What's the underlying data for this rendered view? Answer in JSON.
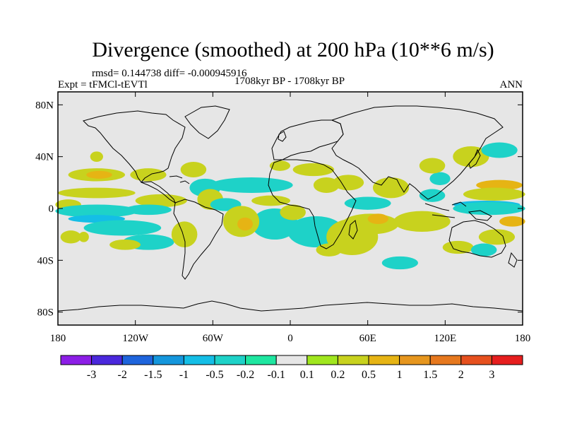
{
  "chart_data": {
    "type": "heatmap",
    "title": "Divergence (smoothed) at 200 hPa (10**6 m/s)",
    "stats_text": "rmsd= 0.144738 diff= -0.000945916",
    "left_label": "Expt = tFMCl-tEVTl",
    "center_label": "1708kyr BP - 1708kyr BP",
    "right_label": "ANN",
    "projection": "cylindrical equidistant",
    "lon_range": [
      -180,
      180
    ],
    "lat_range": [
      -90,
      90
    ],
    "x_ticks": [
      {
        "value": -180,
        "label": "180"
      },
      {
        "value": -120,
        "label": "120W"
      },
      {
        "value": -60,
        "label": "60W"
      },
      {
        "value": 0,
        "label": "0"
      },
      {
        "value": 60,
        "label": "60E"
      },
      {
        "value": 120,
        "label": "120E"
      },
      {
        "value": 180,
        "label": "180"
      }
    ],
    "y_ticks": [
      {
        "value": 80,
        "label": "80N"
      },
      {
        "value": 40,
        "label": "40N"
      },
      {
        "value": 0,
        "label": "0"
      },
      {
        "value": -40,
        "label": "40S"
      },
      {
        "value": -80,
        "label": "80S"
      }
    ],
    "contour_levels": [
      "-3",
      "-2",
      "-1.5",
      "-1",
      "-0.5",
      "-0.2",
      "-0.1",
      "0.1",
      "0.2",
      "0.5",
      "1",
      "1.5",
      "2",
      "3"
    ],
    "colorbar_colors": [
      "#8c1ee6",
      "#4a28dc",
      "#1e64dc",
      "#1496dc",
      "#14bee6",
      "#1ed2c8",
      "#1ee6a0",
      "#e6e6e6",
      "#a0e61e",
      "#c8d21e",
      "#e6b414",
      "#e6961e",
      "#e6781e",
      "#e6501e",
      "#e61e1e"
    ],
    "regions": [
      {
        "level": 9,
        "lon": -150,
        "lat": 26,
        "rlon": 22,
        "rlat": 5
      },
      {
        "level": 9,
        "lon": -110,
        "lat": 26,
        "rlon": 14,
        "rlat": 5
      },
      {
        "level": 10,
        "lon": -148,
        "lat": 26,
        "rlon": 10,
        "rlat": 3
      },
      {
        "level": 9,
        "lon": -150,
        "lat": 12,
        "rlon": 30,
        "rlat": 4
      },
      {
        "level": 9,
        "lon": -100,
        "lat": 6,
        "rlon": 20,
        "rlat": 5
      },
      {
        "level": 9,
        "lon": -172,
        "lat": 3,
        "rlon": 10,
        "rlat": 4
      },
      {
        "level": 5,
        "lon": -150,
        "lat": -2,
        "rlon": 32,
        "rlat": 5
      },
      {
        "level": 5,
        "lon": -110,
        "lat": -1,
        "rlon": 18,
        "rlat": 4
      },
      {
        "level": 4,
        "lon": -150,
        "lat": -8,
        "rlon": 22,
        "rlat": 3
      },
      {
        "level": 5,
        "lon": -130,
        "lat": -15,
        "rlon": 30,
        "rlat": 6
      },
      {
        "level": 5,
        "lon": -110,
        "lat": -26,
        "rlon": 20,
        "rlat": 6
      },
      {
        "level": 9,
        "lon": -170,
        "lat": -22,
        "rlon": 8,
        "rlat": 5
      },
      {
        "level": 9,
        "lon": -128,
        "lat": -28,
        "rlon": 12,
        "rlat": 4
      },
      {
        "level": 9,
        "lon": -82,
        "lat": -20,
        "rlon": 10,
        "rlat": 10
      },
      {
        "level": 5,
        "lon": -66,
        "lat": 16,
        "rlon": 12,
        "rlat": 7
      },
      {
        "level": 9,
        "lon": -75,
        "lat": 30,
        "rlon": 10,
        "rlat": 6
      },
      {
        "level": 9,
        "lon": -62,
        "lat": 7,
        "rlon": 10,
        "rlat": 8
      },
      {
        "level": 5,
        "lon": -30,
        "lat": 18,
        "rlon": 32,
        "rlat": 6
      },
      {
        "level": 5,
        "lon": -50,
        "lat": 3,
        "rlon": 12,
        "rlat": 5
      },
      {
        "level": 5,
        "lon": -12,
        "lat": -12,
        "rlon": 18,
        "rlat": 12
      },
      {
        "level": 5,
        "lon": 20,
        "lat": -18,
        "rlon": 22,
        "rlat": 12
      },
      {
        "level": 9,
        "lon": -38,
        "lat": -10,
        "rlon": 14,
        "rlat": 12
      },
      {
        "level": 10,
        "lon": -35,
        "lat": -12,
        "rlon": 6,
        "rlat": 5
      },
      {
        "level": 9,
        "lon": 2,
        "lat": -3,
        "rlon": 10,
        "rlat": 6
      },
      {
        "level": 9,
        "lon": 48,
        "lat": -22,
        "rlon": 20,
        "rlat": 14
      },
      {
        "level": 9,
        "lon": -8,
        "lat": 33,
        "rlon": 8,
        "rlat": 4
      },
      {
        "level": 9,
        "lon": 18,
        "lat": 30,
        "rlon": 16,
        "rlat": 5
      },
      {
        "level": 9,
        "lon": 28,
        "lat": 18,
        "rlon": 10,
        "rlat": 6
      },
      {
        "level": 9,
        "lon": -15,
        "lat": 6,
        "rlon": 15,
        "rlat": 4
      },
      {
        "level": 5,
        "lon": 60,
        "lat": 4,
        "rlon": 18,
        "rlat": 5
      },
      {
        "level": 9,
        "lon": 45,
        "lat": 20,
        "rlon": 12,
        "rlat": 6
      },
      {
        "level": 9,
        "lon": 78,
        "lat": 16,
        "rlon": 14,
        "rlat": 8
      },
      {
        "level": 9,
        "lon": 62,
        "lat": -12,
        "rlon": 22,
        "rlat": 8
      },
      {
        "level": 10,
        "lon": 68,
        "lat": -8,
        "rlon": 8,
        "rlat": 4
      },
      {
        "level": 9,
        "lon": 102,
        "lat": -10,
        "rlon": 22,
        "rlat": 8
      },
      {
        "level": 5,
        "lon": 110,
        "lat": 10,
        "rlon": 10,
        "rlat": 5
      },
      {
        "level": 5,
        "lon": 116,
        "lat": 23,
        "rlon": 8,
        "rlat": 5
      },
      {
        "level": 9,
        "lon": 110,
        "lat": 33,
        "rlon": 10,
        "rlat": 6
      },
      {
        "level": 9,
        "lon": 140,
        "lat": 40,
        "rlon": 14,
        "rlat": 8
      },
      {
        "level": 5,
        "lon": 162,
        "lat": 45,
        "rlon": 14,
        "rlat": 6
      },
      {
        "level": 4,
        "lon": 152,
        "lat": 3,
        "rlon": 26,
        "rlat": 3
      },
      {
        "level": 5,
        "lon": 154,
        "lat": 0,
        "rlon": 28,
        "rlat": 5
      },
      {
        "level": 10,
        "lon": 162,
        "lat": 18,
        "rlon": 18,
        "rlat": 4
      },
      {
        "level": 9,
        "lon": 158,
        "lat": 11,
        "rlon": 24,
        "rlat": 5
      },
      {
        "level": 10,
        "lon": 172,
        "lat": -10,
        "rlon": 10,
        "rlat": 4
      },
      {
        "level": 9,
        "lon": 160,
        "lat": -22,
        "rlon": 14,
        "rlat": 6
      },
      {
        "level": 9,
        "lon": 130,
        "lat": -30,
        "rlon": 12,
        "rlat": 5
      },
      {
        "level": 5,
        "lon": 85,
        "lat": -42,
        "rlon": 14,
        "rlat": 5
      },
      {
        "level": 5,
        "lon": 150,
        "lat": -32,
        "rlon": 10,
        "rlat": 5
      },
      {
        "level": 9,
        "lon": -150,
        "lat": 40,
        "rlon": 5,
        "rlat": 4
      },
      {
        "level": 9,
        "lon": 30,
        "lat": -32,
        "rlon": 10,
        "rlat": 5
      },
      {
        "level": 9,
        "lon": -160,
        "lat": -22,
        "rlon": 4,
        "rlat": 4
      }
    ]
  }
}
